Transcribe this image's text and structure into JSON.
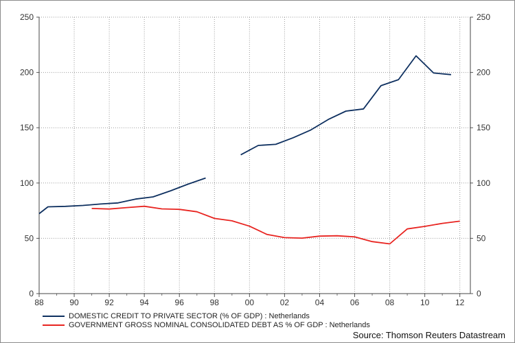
{
  "chart_data": {
    "type": "line",
    "x_ticks": [
      "88",
      "90",
      "92",
      "94",
      "96",
      "98",
      "00",
      "02",
      "04",
      "06",
      "08",
      "10",
      "12"
    ],
    "y_ticks": [
      0,
      50,
      100,
      150,
      200,
      250
    ],
    "xlim": [
      1988,
      2012.6
    ],
    "ylim": [
      0,
      250
    ],
    "grid": true,
    "series": [
      {
        "name": "DOMESTIC CREDIT TO PRIVATE SECTOR (% OF GDP) : Netherlands",
        "color": "#0d2f5f",
        "points": [
          [
            1988.0,
            72.3
          ],
          [
            1988.5,
            78.5
          ],
          [
            1989.5,
            78.9
          ],
          [
            1990.5,
            79.7
          ],
          [
            1991.5,
            81.0
          ],
          [
            1992.5,
            82.0
          ],
          [
            1993.5,
            85.5
          ],
          [
            1994.5,
            87.5
          ],
          [
            1995.5,
            93.0
          ],
          [
            1996.5,
            99.0
          ],
          [
            1997.5,
            104.5
          ],
          null,
          [
            1999.5,
            125.5
          ],
          [
            2000.5,
            134.0
          ],
          [
            2001.5,
            135.0
          ],
          [
            2002.5,
            141.0
          ],
          [
            2003.5,
            148.0
          ],
          [
            2004.5,
            157.5
          ],
          [
            2005.5,
            165.0
          ],
          [
            2006.5,
            167.0
          ],
          [
            2007.5,
            188.0
          ],
          [
            2008.5,
            193.5
          ],
          [
            2009.5,
            215.0
          ],
          [
            2010.5,
            199.5
          ],
          [
            2011.5,
            198.0
          ]
        ]
      },
      {
        "name": "GOVERNMENT GROSS NOMINAL CONSOLIDATED DEBT AS % OF GDP : Netherlands",
        "color": "#e8231f",
        "points": [
          [
            1991.0,
            77.0
          ],
          [
            1992.0,
            76.5
          ],
          [
            1993.0,
            77.8
          ],
          [
            1994.0,
            79.0
          ],
          [
            1995.0,
            76.6
          ],
          [
            1996.0,
            76.2
          ],
          [
            1997.0,
            74.0
          ],
          [
            1998.0,
            68.0
          ],
          [
            1999.0,
            65.8
          ],
          [
            2000.0,
            61.0
          ],
          [
            2001.0,
            53.5
          ],
          [
            2002.0,
            50.6
          ],
          [
            2003.0,
            50.2
          ],
          [
            2004.0,
            52.0
          ],
          [
            2005.0,
            52.3
          ],
          [
            2006.0,
            51.3
          ],
          [
            2007.0,
            47.0
          ],
          [
            2008.0,
            45.0
          ],
          [
            2009.0,
            58.5
          ],
          [
            2010.0,
            60.8
          ],
          [
            2011.0,
            63.5
          ],
          [
            2012.0,
            65.5
          ]
        ]
      }
    ],
    "legend_position": "bottom-left"
  },
  "legend": {
    "items": [
      {
        "label": "DOMESTIC CREDIT TO PRIVATE SECTOR (% OF GDP) : Netherlands",
        "color": "#0d2f5f"
      },
      {
        "label": "GOVERNMENT GROSS NOMINAL CONSOLIDATED DEBT AS % OF GDP : Netherlands",
        "color": "#e8231f"
      }
    ]
  },
  "source": "Source: Thomson Reuters Datastream"
}
